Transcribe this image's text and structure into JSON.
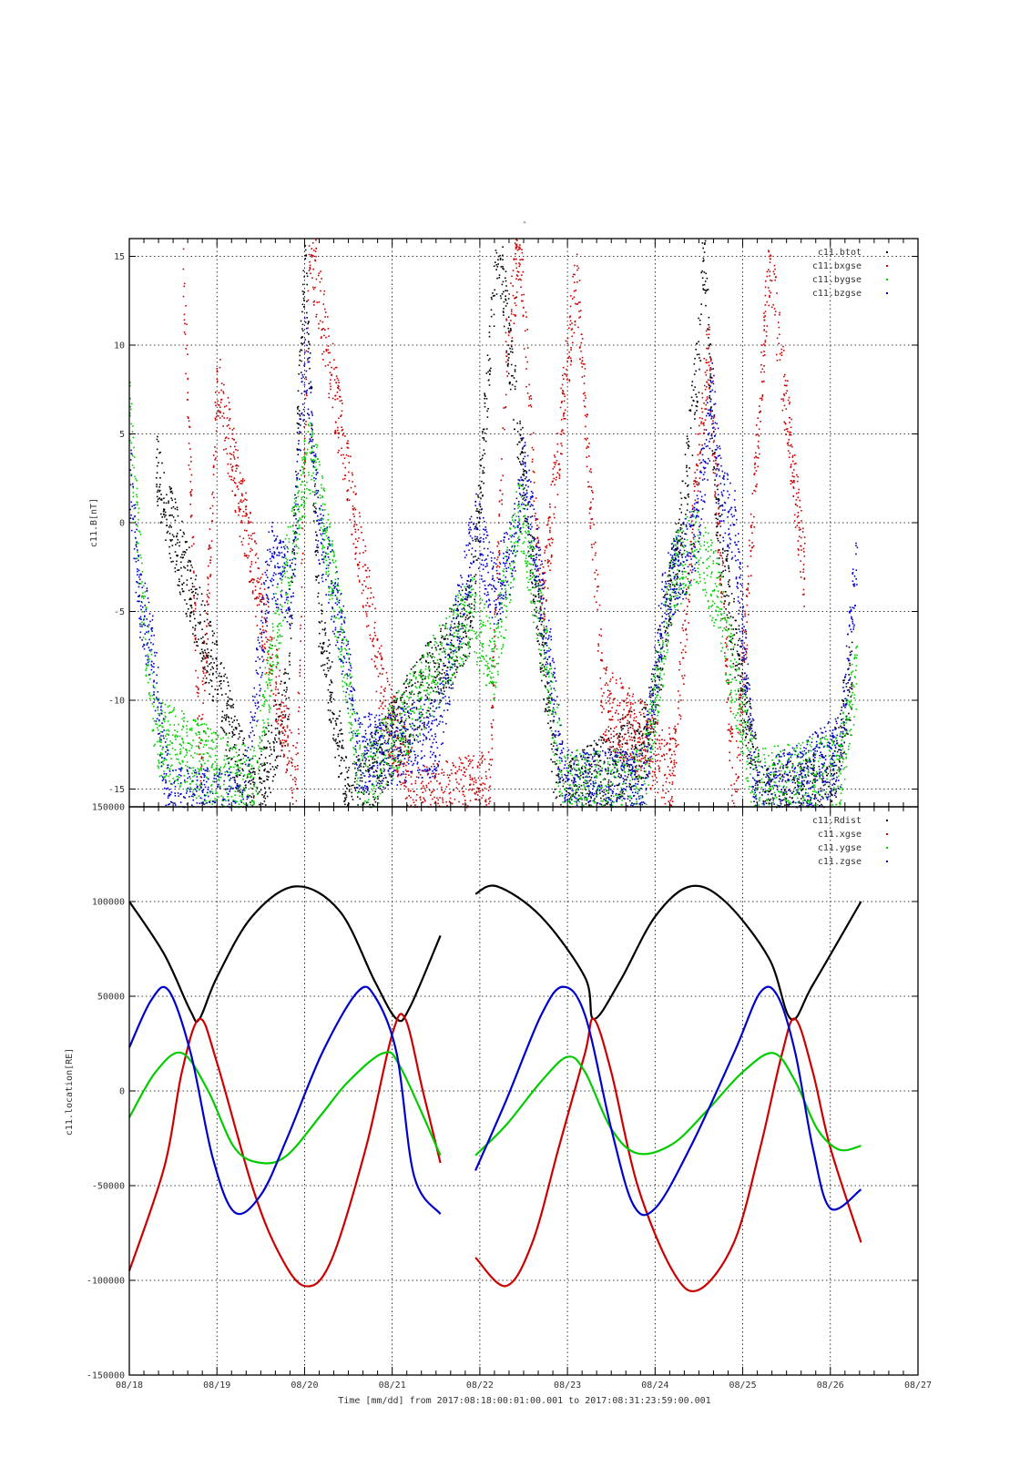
{
  "page_mark": "-",
  "xlabel": "Time [mm/dd]  from 2017:08:18:00:01:00.001  to  2017:08:31:23:59:00.001",
  "x_tick_labels": [
    "08/18",
    "08/19",
    "08/20",
    "08/21",
    "08/22",
    "08/23",
    "08/24",
    "08/25",
    "08/26",
    "08/27"
  ],
  "colors": {
    "black": "#000000",
    "red": "#cc0000",
    "green": "#00cc00",
    "blue": "#0000cc"
  },
  "chart_data": [
    {
      "type": "scatter",
      "title": "",
      "ylabel": "c11.B[nT]",
      "xlim_days": [
        0,
        9
      ],
      "ylim": [
        -16,
        16
      ],
      "y_ticks": [
        15,
        10,
        5,
        0,
        -5,
        -10,
        -15
      ],
      "y_tick_labels": [
        "15",
        "10",
        "5",
        "0",
        "-5",
        "-10",
        "-15"
      ],
      "grid": true,
      "legend_position": "top-right",
      "legend": [
        "c11.btot",
        "c11.bxgse",
        "c11.bygse",
        "c11.bzgse"
      ],
      "series": [
        {
          "name": "c11.btot",
          "color": "black",
          "envelope": [
            [
              0.3,
              3
            ],
            [
              1.4,
              -16
            ],
            [
              1.8,
              -10
            ],
            [
              2.0,
              16
            ],
            [
              2.15,
              -5
            ],
            [
              2.5,
              -16
            ],
            [
              3.9,
              -5
            ],
            [
              4.2,
              16
            ],
            [
              4.55,
              0
            ],
            [
              4.9,
              -16
            ],
            [
              5.9,
              -12
            ],
            [
              6.3,
              0
            ],
            [
              6.5,
              10
            ],
            [
              6.55,
              16
            ],
            [
              6.7,
              0
            ],
            [
              7.2,
              -16
            ],
            [
              8.0,
              -15
            ],
            [
              8.25,
              -8
            ]
          ]
        },
        {
          "name": "c11.bxgse",
          "color": "red",
          "envelope": [
            [
              0.6,
              16
            ],
            [
              0.8,
              -14
            ],
            [
              1.0,
              8
            ],
            [
              1.9,
              -15
            ],
            [
              2.05,
              16
            ],
            [
              2.9,
              -10
            ],
            [
              3.3,
              -16
            ],
            [
              4.1,
              -15
            ],
            [
              4.3,
              10
            ],
            [
              4.45,
              16
            ],
            [
              4.7,
              -5
            ],
            [
              5.1,
              14
            ],
            [
              5.4,
              -10
            ],
            [
              6.2,
              -14
            ],
            [
              6.6,
              10
            ],
            [
              6.9,
              -16
            ],
            [
              7.3,
              15
            ],
            [
              7.7,
              -3
            ]
          ]
        },
        {
          "name": "c11.bygse",
          "color": "green",
          "envelope": [
            [
              0.0,
              6
            ],
            [
              0.15,
              -5
            ],
            [
              0.3,
              -12
            ],
            [
              1.4,
              -15
            ],
            [
              1.7,
              -5
            ],
            [
              2.05,
              4
            ],
            [
              2.15,
              2
            ],
            [
              2.4,
              -6
            ],
            [
              2.65,
              -15
            ],
            [
              3.9,
              -5
            ],
            [
              4.15,
              -8
            ],
            [
              4.45,
              1
            ],
            [
              4.7,
              -6
            ],
            [
              4.95,
              -15
            ],
            [
              5.85,
              -15
            ],
            [
              6.2,
              -3
            ],
            [
              6.45,
              -1
            ],
            [
              6.7,
              -4
            ],
            [
              7.15,
              -15
            ],
            [
              8.1,
              -14
            ],
            [
              8.3,
              -8
            ]
          ]
        },
        {
          "name": "c11.bzgse",
          "color": "blue",
          "envelope": [
            [
              0.0,
              3
            ],
            [
              0.1,
              -4
            ],
            [
              0.25,
              -7
            ],
            [
              0.45,
              -16
            ],
            [
              1.3,
              -16
            ],
            [
              1.6,
              -2
            ],
            [
              1.85,
              -4
            ],
            [
              2.0,
              10
            ],
            [
              2.15,
              0
            ],
            [
              2.45,
              -7
            ],
            [
              2.6,
              -13
            ],
            [
              3.5,
              -12
            ],
            [
              3.95,
              0
            ],
            [
              4.15,
              -4
            ],
            [
              4.35,
              -2
            ],
            [
              4.5,
              3
            ],
            [
              4.8,
              -8
            ],
            [
              4.95,
              -15
            ],
            [
              5.85,
              -15
            ],
            [
              6.1,
              -4
            ],
            [
              6.45,
              -1
            ],
            [
              6.65,
              7
            ],
            [
              6.75,
              1
            ],
            [
              6.9,
              0
            ],
            [
              7.15,
              -16
            ],
            [
              8.1,
              -13
            ],
            [
              8.3,
              -2
            ]
          ]
        }
      ]
    },
    {
      "type": "line",
      "title": "",
      "ylabel": "c11.location[RE]",
      "xlim_days": [
        0,
        9
      ],
      "ylim": [
        -150000,
        150000
      ],
      "y_ticks": [
        150000,
        100000,
        50000,
        0,
        -50000,
        -100000,
        -150000
      ],
      "y_tick_labels": [
        "150000",
        "100000",
        "50000",
        "0",
        "-50000",
        "-100000",
        "-150000"
      ],
      "grid": true,
      "legend_position": "top-right",
      "legend": [
        "c11.Rdist",
        "c11.xgse",
        "c11.ygse",
        "c11.zgse"
      ],
      "gap_days": [
        3.55,
        3.95
      ],
      "segments_days": [
        [
          0.0,
          3.55
        ],
        [
          3.95,
          8.35
        ]
      ],
      "series": [
        {
          "name": "c11.Rdist",
          "color": "black",
          "points": [
            [
              0.0,
              100000
            ],
            [
              0.4,
              72000
            ],
            [
              0.7,
              42000
            ],
            [
              0.8,
              38000
            ],
            [
              1.0,
              60000
            ],
            [
              1.4,
              92000
            ],
            [
              1.9,
              108000
            ],
            [
              2.4,
              95000
            ],
            [
              2.8,
              58000
            ],
            [
              3.05,
              38000
            ],
            [
              3.2,
              44000
            ],
            [
              3.55,
              82000
            ],
            [
              3.95,
              104000
            ],
            [
              4.2,
              108000
            ],
            [
              4.7,
              92000
            ],
            [
              5.2,
              60000
            ],
            [
              5.3,
              38000
            ],
            [
              5.6,
              58000
            ],
            [
              6.0,
              92000
            ],
            [
              6.4,
              108000
            ],
            [
              6.8,
              100000
            ],
            [
              7.3,
              70000
            ],
            [
              7.55,
              38000
            ],
            [
              7.8,
              56000
            ],
            [
              8.35,
              100000
            ]
          ]
        },
        {
          "name": "c11.xgse",
          "color": "red",
          "points": [
            [
              0.0,
              -95000
            ],
            [
              0.4,
              -40000
            ],
            [
              0.6,
              10000
            ],
            [
              0.8,
              38000
            ],
            [
              1.0,
              15000
            ],
            [
              1.4,
              -50000
            ],
            [
              1.7,
              -85000
            ],
            [
              2.0,
              -103000
            ],
            [
              2.3,
              -90000
            ],
            [
              2.7,
              -30000
            ],
            [
              3.0,
              30000
            ],
            [
              3.15,
              38000
            ],
            [
              3.35,
              0
            ],
            [
              3.55,
              -38000
            ],
            [
              3.95,
              -88000
            ],
            [
              4.3,
              -103000
            ],
            [
              4.6,
              -80000
            ],
            [
              4.9,
              -30000
            ],
            [
              5.2,
              20000
            ],
            [
              5.3,
              38000
            ],
            [
              5.5,
              10000
            ],
            [
              5.8,
              -50000
            ],
            [
              6.2,
              -95000
            ],
            [
              6.5,
              -105000
            ],
            [
              6.9,
              -80000
            ],
            [
              7.2,
              -30000
            ],
            [
              7.45,
              20000
            ],
            [
              7.6,
              38000
            ],
            [
              7.8,
              10000
            ],
            [
              8.0,
              -30000
            ],
            [
              8.35,
              -80000
            ]
          ]
        },
        {
          "name": "c11.ygse",
          "color": "green",
          "points": [
            [
              0.0,
              -14000
            ],
            [
              0.3,
              10000
            ],
            [
              0.6,
              20000
            ],
            [
              0.9,
              0
            ],
            [
              1.2,
              -30000
            ],
            [
              1.5,
              -38000
            ],
            [
              1.8,
              -34000
            ],
            [
              2.2,
              -12000
            ],
            [
              2.5,
              5000
            ],
            [
              2.9,
              20000
            ],
            [
              3.1,
              12000
            ],
            [
              3.55,
              -34000
            ],
            [
              3.95,
              -34000
            ],
            [
              4.3,
              -18000
            ],
            [
              4.7,
              5000
            ],
            [
              5.0,
              18000
            ],
            [
              5.2,
              10000
            ],
            [
              5.5,
              -20000
            ],
            [
              5.8,
              -33000
            ],
            [
              6.2,
              -28000
            ],
            [
              6.6,
              -10000
            ],
            [
              7.0,
              10000
            ],
            [
              7.35,
              20000
            ],
            [
              7.6,
              5000
            ],
            [
              7.85,
              -20000
            ],
            [
              8.1,
              -31000
            ],
            [
              8.35,
              -29000
            ]
          ]
        },
        {
          "name": "c11.zgse",
          "color": "blue",
          "points": [
            [
              0.0,
              23000
            ],
            [
              0.25,
              48000
            ],
            [
              0.45,
              53000
            ],
            [
              0.7,
              20000
            ],
            [
              0.95,
              -35000
            ],
            [
              1.2,
              -64000
            ],
            [
              1.5,
              -55000
            ],
            [
              1.8,
              -25000
            ],
            [
              2.2,
              20000
            ],
            [
              2.6,
              52000
            ],
            [
              2.8,
              50000
            ],
            [
              3.05,
              20000
            ],
            [
              3.25,
              -45000
            ],
            [
              3.55,
              -65000
            ],
            [
              3.95,
              -42000
            ],
            [
              4.3,
              -5000
            ],
            [
              4.7,
              40000
            ],
            [
              4.95,
              55000
            ],
            [
              5.2,
              40000
            ],
            [
              5.5,
              -20000
            ],
            [
              5.75,
              -60000
            ],
            [
              6.0,
              -62000
            ],
            [
              6.4,
              -30000
            ],
            [
              6.9,
              20000
            ],
            [
              7.2,
              52000
            ],
            [
              7.4,
              50000
            ],
            [
              7.6,
              20000
            ],
            [
              7.8,
              -30000
            ],
            [
              8.0,
              -62000
            ],
            [
              8.35,
              -52000
            ]
          ]
        }
      ]
    }
  ]
}
